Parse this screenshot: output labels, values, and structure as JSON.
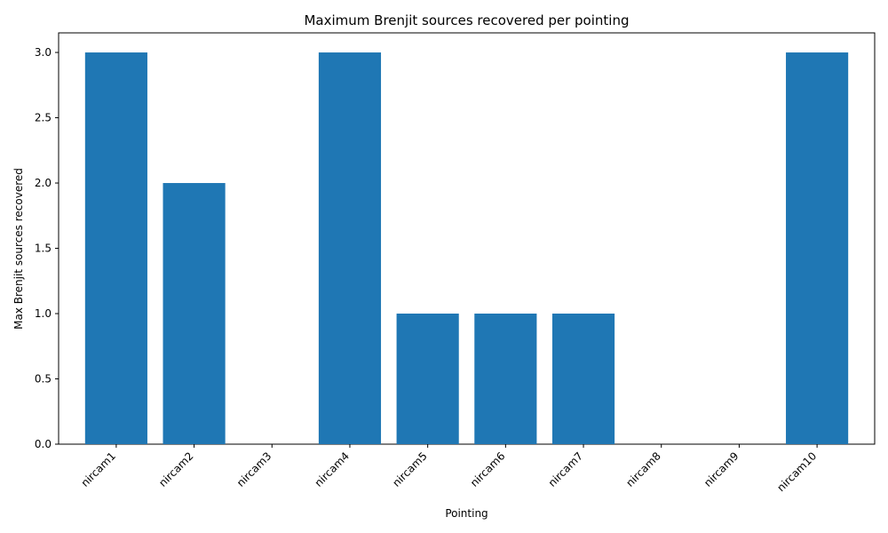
{
  "chart_data": {
    "type": "bar",
    "title": "Maximum Brenjit sources recovered per pointing",
    "xlabel": "Pointing",
    "ylabel": "Max Brenjit sources recovered",
    "categories": [
      "nircam1",
      "nircam2",
      "nircam3",
      "nircam4",
      "nircam5",
      "nircam6",
      "nircam7",
      "nircam8",
      "nircam9",
      "nircam10"
    ],
    "values": [
      3,
      2,
      0,
      3,
      1,
      1,
      1,
      0,
      0,
      3
    ],
    "ylim": [
      0,
      3.15
    ],
    "yticks": [
      0.0,
      0.5,
      1.0,
      1.5,
      2.0,
      2.5,
      3.0
    ],
    "ytick_labels": [
      "0.0",
      "0.5",
      "1.0",
      "1.5",
      "2.0",
      "2.5",
      "3.0"
    ],
    "xtick_rotation": 45,
    "grid": false,
    "bar_color": "#1f77b4"
  }
}
